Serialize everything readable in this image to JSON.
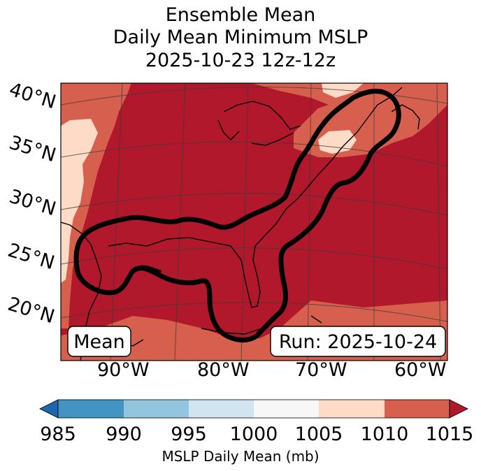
{
  "title": {
    "line1": "Ensemble Mean",
    "line2": "Daily Mean Minimum MSLP",
    "line3": "2025-10-23 12z-12z"
  },
  "map": {
    "lat_labels": [
      "40°N",
      "35°N",
      "30°N",
      "25°N",
      "20°N"
    ],
    "lon_labels": [
      "90°W",
      "80°W",
      "70°W",
      "60°W"
    ],
    "mean_box": "Mean",
    "run_box": "Run: 2025-10-24"
  },
  "colorbar": {
    "ticks": [
      "985",
      "990",
      "995",
      "1000",
      "1005",
      "1010",
      "1015"
    ],
    "label": "MSLP Daily Mean (mb)",
    "colors": [
      "#2166ac",
      "#4393c3",
      "#92c5de",
      "#d1e5f0",
      "#f7f7f7",
      "#fddbc7",
      "#d6604d",
      "#b2182b"
    ]
  },
  "colors": {
    "band_1005_1010": "#fddbc7",
    "band_1010_1015": "#d6604d",
    "band_1015_plus": "#b2182b",
    "contour": "#000000"
  }
}
